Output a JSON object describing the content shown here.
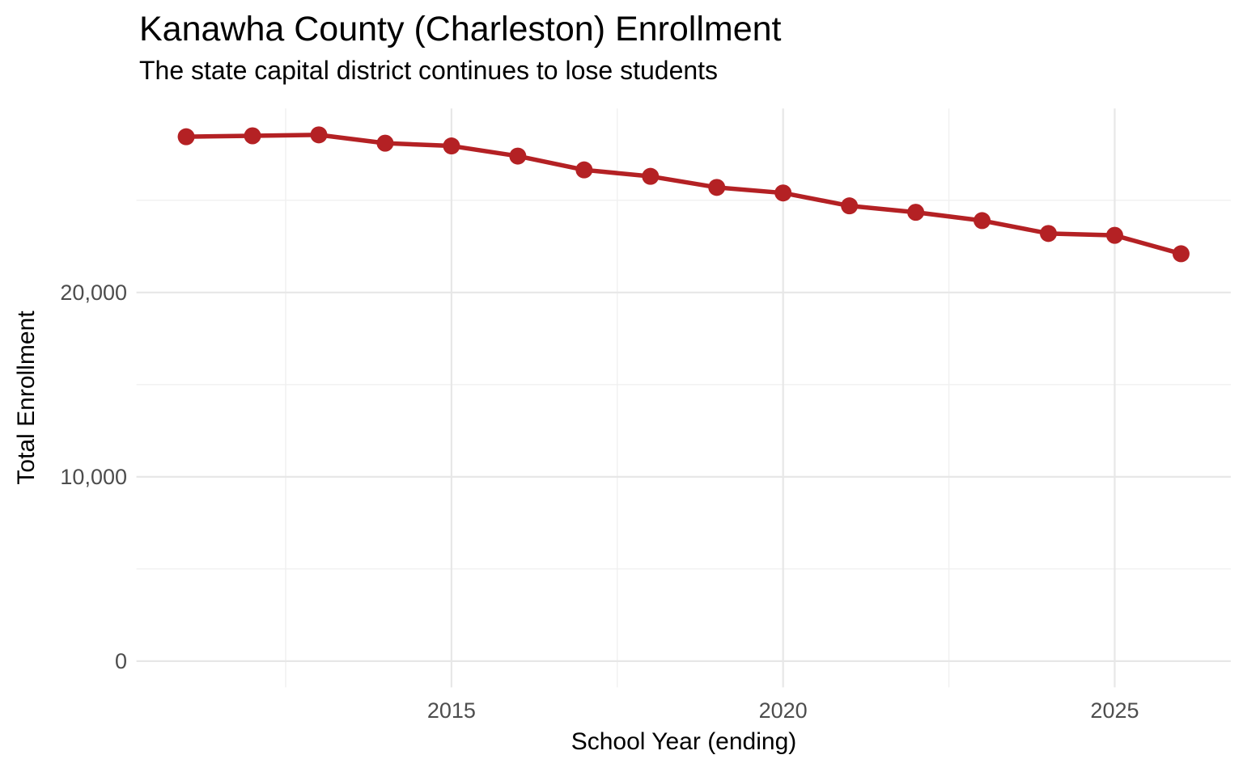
{
  "chart_data": {
    "type": "line",
    "title": "Kanawha County (Charleston) Enrollment",
    "subtitle": "The state capital district continues to lose students",
    "xlabel": "School Year (ending)",
    "ylabel": "Total Enrollment",
    "series_name": "Total Enrollment",
    "x": [
      2011,
      2012,
      2013,
      2014,
      2015,
      2016,
      2017,
      2018,
      2019,
      2020,
      2021,
      2022,
      2023,
      2024,
      2025,
      2026
    ],
    "values": [
      28450,
      28500,
      28550,
      28100,
      27950,
      27400,
      26650,
      26300,
      25700,
      25400,
      24700,
      24350,
      23900,
      23200,
      23100,
      22100
    ],
    "x_ticks": [
      {
        "value": 2015,
        "label": "2015"
      },
      {
        "value": 2020,
        "label": "2020"
      },
      {
        "value": 2025,
        "label": "2025"
      }
    ],
    "y_ticks": [
      {
        "value": 0,
        "label": "0"
      },
      {
        "value": 10000,
        "label": "10,000"
      },
      {
        "value": 20000,
        "label": "20,000"
      }
    ],
    "x_minor_gridlines": [
      2012.5,
      2017.5,
      2022.5
    ],
    "y_minor_gridlines": [
      5000,
      15000,
      25000
    ],
    "xlim": [
      2010.25,
      2026.75
    ],
    "ylim": [
      -1427,
      29978
    ],
    "grid": "major+minor",
    "legend": "none"
  },
  "colors": {
    "background": "#FFFFFF",
    "line": "#B42124",
    "point": "#B42124",
    "grid_major": "#E7E7E7",
    "grid_minor": "#F0F0F0",
    "tick_label": "#4D4D4D",
    "text": "#000000"
  }
}
